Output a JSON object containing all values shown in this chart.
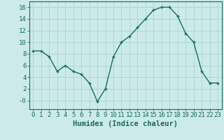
{
  "x": [
    0,
    1,
    2,
    3,
    4,
    5,
    6,
    7,
    8,
    9,
    10,
    11,
    12,
    13,
    14,
    15,
    16,
    17,
    18,
    19,
    20,
    21,
    22,
    23
  ],
  "y": [
    8.5,
    8.5,
    7.5,
    5.0,
    6.0,
    5.0,
    4.5,
    3.0,
    -0.2,
    2.0,
    7.5,
    10.0,
    11.0,
    12.5,
    14.0,
    15.5,
    16.0,
    16.0,
    14.5,
    11.5,
    10.0,
    5.0,
    3.0,
    3.0
  ],
  "line_color": "#1a6b5a",
  "marker_color": "#1a6b5a",
  "bg_color": "#cceaea",
  "grid_color": "#aad4d4",
  "xlabel": "Humidex (Indice chaleur)",
  "xlim": [
    -0.5,
    23.5
  ],
  "ylim": [
    -1.5,
    17
  ],
  "yticks": [
    0,
    2,
    4,
    6,
    8,
    10,
    12,
    14,
    16
  ],
  "ytick_labels": [
    "-0",
    "2",
    "4",
    "6",
    "8",
    "10",
    "12",
    "14",
    "16"
  ],
  "xticks": [
    0,
    1,
    2,
    3,
    4,
    5,
    6,
    7,
    8,
    9,
    10,
    11,
    12,
    13,
    14,
    15,
    16,
    17,
    18,
    19,
    20,
    21,
    22,
    23
  ],
  "tick_font_size": 6.5,
  "label_font_size": 7.5
}
